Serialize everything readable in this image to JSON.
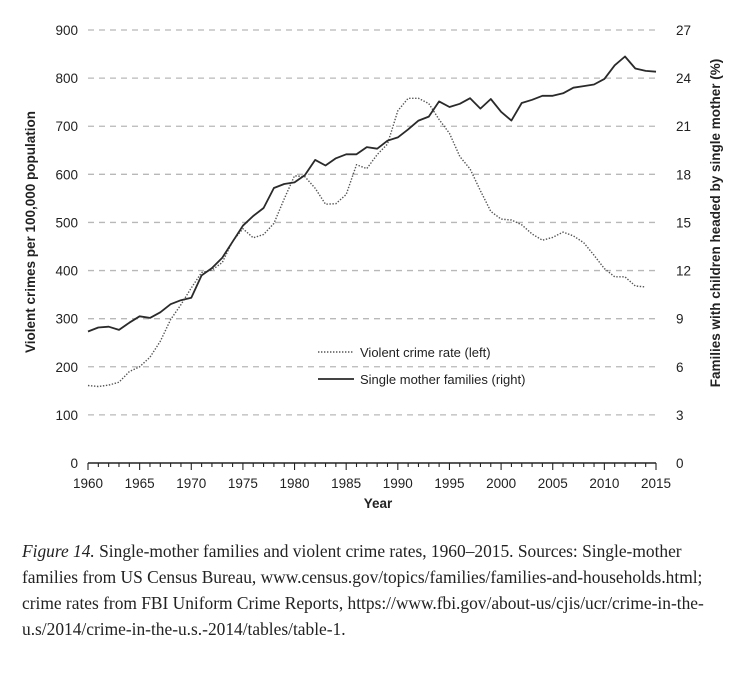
{
  "chart_data": {
    "type": "line",
    "xlabel": "Year",
    "ylabel_left": "Violent crimes per 100,000 population",
    "ylabel_right": "Families with children headed by single mother (%)",
    "xlim": [
      1960,
      2015
    ],
    "x_ticks": [
      1960,
      1965,
      1970,
      1975,
      1980,
      1985,
      1990,
      1995,
      2000,
      2005,
      2010,
      2015
    ],
    "ylim_left": [
      0,
      900
    ],
    "y_ticks_left": [
      0,
      100,
      200,
      300,
      400,
      500,
      600,
      700,
      800,
      900
    ],
    "ylim_right": [
      0,
      27
    ],
    "y_ticks_right": [
      0,
      3,
      6,
      9,
      12,
      15,
      18,
      21,
      24,
      27
    ],
    "grid": "horizontal dashed",
    "legend_position": "center-right",
    "series": [
      {
        "name": "Violent crime rate (left)",
        "axis": "left",
        "style": "dotted",
        "x": [
          1960,
          1961,
          1962,
          1963,
          1964,
          1965,
          1966,
          1967,
          1968,
          1969,
          1970,
          1971,
          1972,
          1973,
          1974,
          1975,
          1976,
          1977,
          1978,
          1979,
          1980,
          1981,
          1982,
          1983,
          1984,
          1985,
          1986,
          1987,
          1988,
          1989,
          1990,
          1991,
          1992,
          1993,
          1994,
          1995,
          1996,
          1997,
          1998,
          1999,
          2000,
          2001,
          2002,
          2003,
          2004,
          2005,
          2006,
          2007,
          2008,
          2009,
          2010,
          2011,
          2012,
          2013,
          2014
        ],
        "values": [
          161,
          159,
          162,
          168,
          190,
          200,
          220,
          253,
          298,
          329,
          364,
          396,
          401,
          417,
          461,
          487,
          468,
          475,
          498,
          549,
          597,
          595,
          571,
          538,
          539,
          558,
          620,
          612,
          641,
          663,
          732,
          758,
          758,
          747,
          714,
          685,
          637,
          611,
          566,
          523,
          507,
          505,
          495,
          476,
          463,
          469,
          480,
          472,
          458,
          432,
          404,
          387,
          387,
          368,
          366
        ]
      },
      {
        "name": "Single mother families (right)",
        "axis": "right",
        "style": "solid",
        "x": [
          1960,
          1961,
          1962,
          1963,
          1964,
          1965,
          1966,
          1967,
          1968,
          1969,
          1970,
          1971,
          1972,
          1973,
          1974,
          1975,
          1976,
          1977,
          1978,
          1979,
          1980,
          1981,
          1982,
          1983,
          1984,
          1985,
          1986,
          1987,
          1988,
          1989,
          1990,
          1991,
          1992,
          1993,
          1994,
          1995,
          1996,
          1997,
          1998,
          1999,
          2000,
          2001,
          2002,
          2003,
          2004,
          2005,
          2006,
          2007,
          2008,
          2009,
          2010,
          2011,
          2012,
          2013,
          2014,
          2015
        ],
        "values": [
          8.2,
          8.45,
          8.5,
          8.3,
          8.75,
          9.15,
          9.05,
          9.4,
          9.9,
          10.15,
          10.3,
          11.7,
          12.15,
          12.8,
          13.8,
          14.8,
          15.4,
          15.9,
          17.15,
          17.4,
          17.5,
          17.95,
          18.9,
          18.55,
          19.0,
          19.25,
          19.25,
          19.7,
          19.6,
          20.1,
          20.3,
          20.8,
          21.35,
          21.6,
          22.55,
          22.2,
          22.4,
          22.75,
          22.1,
          22.7,
          21.9,
          21.35,
          22.45,
          22.65,
          22.9,
          22.9,
          23.05,
          23.4,
          23.5,
          23.6,
          23.95,
          24.8,
          25.35,
          24.6,
          24.45,
          24.4
        ]
      }
    ]
  },
  "caption": {
    "figure_label": "Figure 14.",
    "text": "Single-mother families and violent crime rates, 1960–2015. Sources: Single-mother families from US Census Bureau, www.census.gov/topics/families/families-and-households.html; crime rates from FBI Uniform Crime Reports, https://www.fbi.gov/about-us/cjis/ucr/crime-in-the-u.s/2014/crime-in-the-u.s.-2014/tables/table-1."
  }
}
